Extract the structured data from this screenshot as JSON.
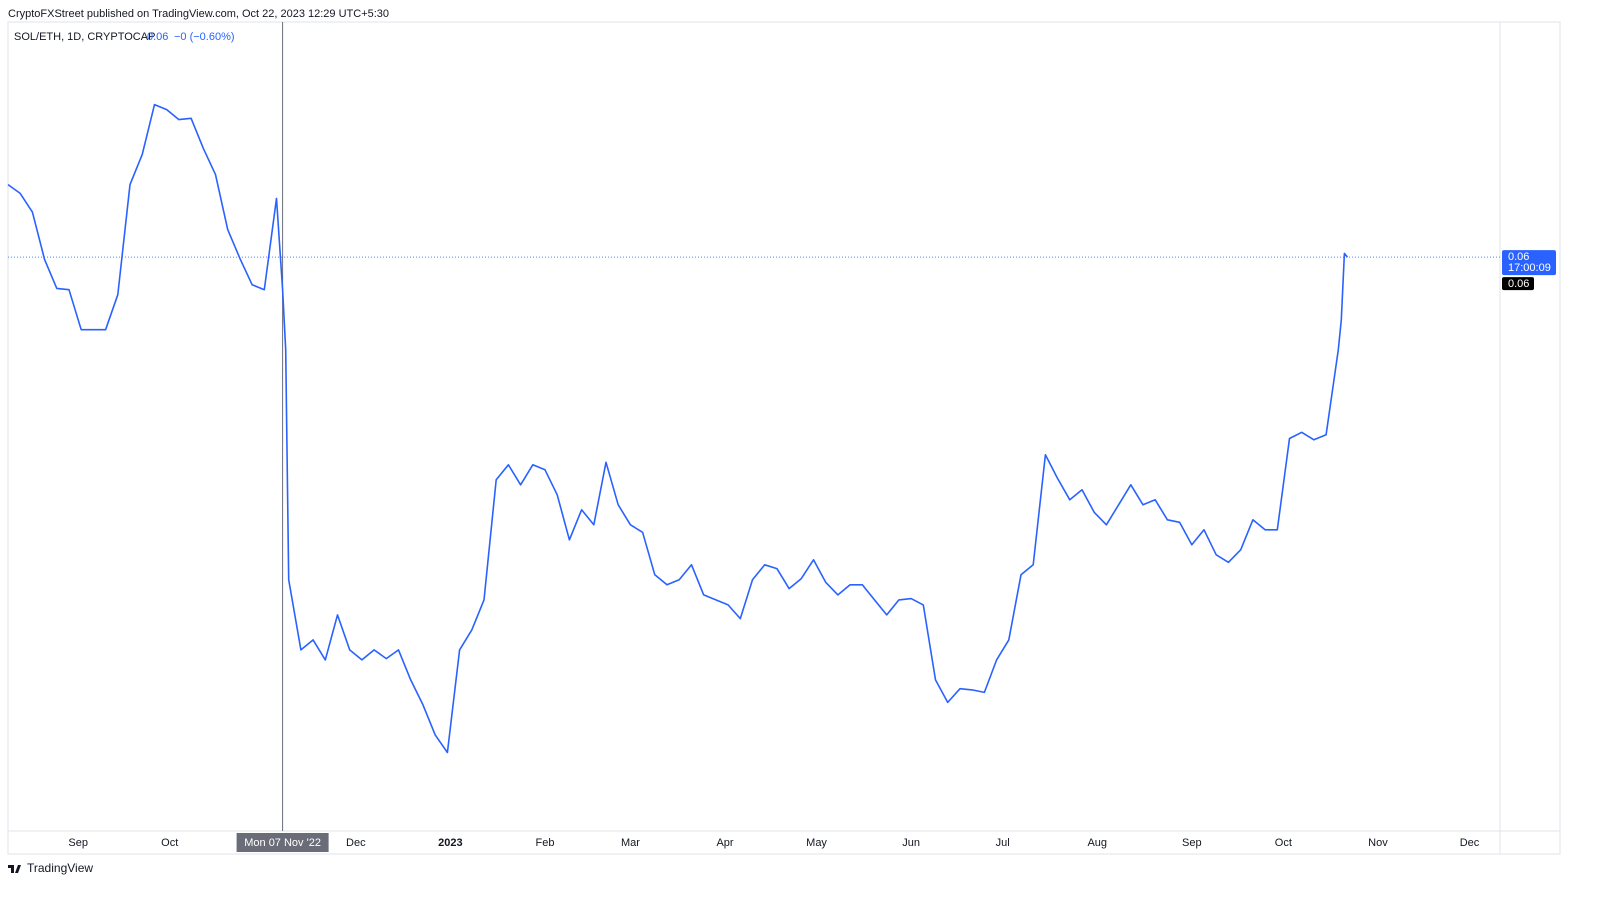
{
  "chart_data": {
    "type": "line",
    "title": "CryptoFXStreet published on TradingView.com, Oct 22, 2023 12:29 UTC+5:30",
    "legend": {
      "symbol": "SOL/ETH, 1D, CRYPTOCAP",
      "last": "0.06",
      "change": "−0 (−0.60%)"
    },
    "color": "#2962ff",
    "x": [
      "2022-08-09",
      "2022-08-13",
      "2022-08-17",
      "2022-08-21",
      "2022-08-25",
      "2022-08-29",
      "2022-09-02",
      "2022-09-06",
      "2022-09-10",
      "2022-09-14",
      "2022-09-18",
      "2022-09-22",
      "2022-09-26",
      "2022-09-30",
      "2022-10-04",
      "2022-10-08",
      "2022-10-12",
      "2022-10-16",
      "2022-10-20",
      "2022-10-24",
      "2022-10-28",
      "2022-11-01",
      "2022-11-05",
      "2022-11-07",
      "2022-11-08",
      "2022-11-09",
      "2022-11-13",
      "2022-11-17",
      "2022-11-21",
      "2022-11-25",
      "2022-11-29",
      "2022-12-03",
      "2022-12-07",
      "2022-12-11",
      "2022-12-15",
      "2022-12-19",
      "2022-12-23",
      "2022-12-27",
      "2022-12-31",
      "2023-01-04",
      "2023-01-08",
      "2023-01-12",
      "2023-01-16",
      "2023-01-20",
      "2023-01-24",
      "2023-01-28",
      "2023-02-01",
      "2023-02-05",
      "2023-02-09",
      "2023-02-13",
      "2023-02-17",
      "2023-02-21",
      "2023-02-25",
      "2023-03-01",
      "2023-03-05",
      "2023-03-09",
      "2023-03-13",
      "2023-03-17",
      "2023-03-21",
      "2023-03-25",
      "2023-03-29",
      "2023-04-02",
      "2023-04-06",
      "2023-04-10",
      "2023-04-14",
      "2023-04-18",
      "2023-04-22",
      "2023-04-26",
      "2023-04-30",
      "2023-05-04",
      "2023-05-08",
      "2023-05-12",
      "2023-05-16",
      "2023-05-20",
      "2023-05-24",
      "2023-05-28",
      "2023-06-01",
      "2023-06-05",
      "2023-06-09",
      "2023-06-13",
      "2023-06-17",
      "2023-06-21",
      "2023-06-25",
      "2023-06-29",
      "2023-07-03",
      "2023-07-07",
      "2023-07-11",
      "2023-07-15",
      "2023-07-19",
      "2023-07-23",
      "2023-07-27",
      "2023-07-31",
      "2023-08-04",
      "2023-08-08",
      "2023-08-12",
      "2023-08-16",
      "2023-08-20",
      "2023-08-24",
      "2023-08-28",
      "2023-09-01",
      "2023-09-05",
      "2023-09-09",
      "2023-09-13",
      "2023-09-17",
      "2023-09-21",
      "2023-09-25",
      "2023-09-29",
      "2023-10-03",
      "2023-10-07",
      "2023-10-11",
      "2023-10-15",
      "2023-10-19",
      "2023-10-20",
      "2023-10-21",
      "2023-10-22"
    ],
    "values": [
      0.0658,
      0.0651,
      0.0636,
      0.0598,
      0.0575,
      0.0574,
      0.0542,
      0.0542,
      0.0542,
      0.057,
      0.0658,
      0.0682,
      0.0722,
      0.0718,
      0.071,
      0.0711,
      0.0687,
      0.0666,
      0.0622,
      0.0599,
      0.0578,
      0.0574,
      0.0647,
      0.0574,
      0.0526,
      0.0342,
      0.0286,
      0.0294,
      0.0278,
      0.0314,
      0.0286,
      0.0278,
      0.0286,
      0.0279,
      0.0286,
      0.0262,
      0.0242,
      0.0218,
      0.0204,
      0.0286,
      0.0302,
      0.0326,
      0.0422,
      0.0434,
      0.0418,
      0.0434,
      0.043,
      0.041,
      0.0374,
      0.0398,
      0.0386,
      0.0436,
      0.0402,
      0.0386,
      0.038,
      0.0346,
      0.0338,
      0.0342,
      0.0354,
      0.033,
      0.0326,
      0.0322,
      0.0311,
      0.0342,
      0.0354,
      0.0351,
      0.0335,
      0.0343,
      0.0358,
      0.034,
      0.033,
      0.0338,
      0.0338,
      0.0326,
      0.0314,
      0.0326,
      0.0327,
      0.0322,
      0.0262,
      0.0244,
      0.0255,
      0.0254,
      0.0252,
      0.0278,
      0.0294,
      0.0346,
      0.0354,
      0.0442,
      0.0423,
      0.0406,
      0.0414,
      0.0396,
      0.0386,
      0.0402,
      0.0418,
      0.0402,
      0.0406,
      0.039,
      0.0388,
      0.037,
      0.0382,
      0.0362,
      0.0356,
      0.0366,
      0.039,
      0.0382,
      0.0382,
      0.0455,
      0.046,
      0.0454,
      0.0458,
      0.0526,
      0.055,
      0.0603,
      0.06
    ],
    "xlim": [
      "2022-08-09",
      "2023-12-11"
    ],
    "ylim": [
      0.0142,
      0.0788
    ],
    "xticks": [
      {
        "value": "2022-09-01",
        "label": "Sep"
      },
      {
        "value": "2022-10-01",
        "label": "Oct"
      },
      {
        "value": "2022-12-01",
        "label": "Dec"
      },
      {
        "value": "2023-01-01",
        "label": "2023"
      },
      {
        "value": "2023-02-01",
        "label": "Feb"
      },
      {
        "value": "2023-03-01",
        "label": "Mar"
      },
      {
        "value": "2023-04-01",
        "label": "Apr"
      },
      {
        "value": "2023-05-01",
        "label": "May"
      },
      {
        "value": "2023-06-01",
        "label": "Jun"
      },
      {
        "value": "2023-07-01",
        "label": "Jul"
      },
      {
        "value": "2023-08-01",
        "label": "Aug"
      },
      {
        "value": "2023-09-01",
        "label": "Sep"
      },
      {
        "value": "2023-10-01",
        "label": "Oct"
      },
      {
        "value": "2023-11-01",
        "label": "Nov"
      },
      {
        "value": "2023-12-01",
        "label": "Dec"
      }
    ],
    "price_label": {
      "value": 0.06,
      "label": "0.06"
    },
    "countdown": "17:00:09",
    "close_label": "0.06",
    "crosshair": {
      "x": "2022-11-07",
      "label": "Mon 07 Nov '22"
    },
    "brand": "TradingView"
  }
}
